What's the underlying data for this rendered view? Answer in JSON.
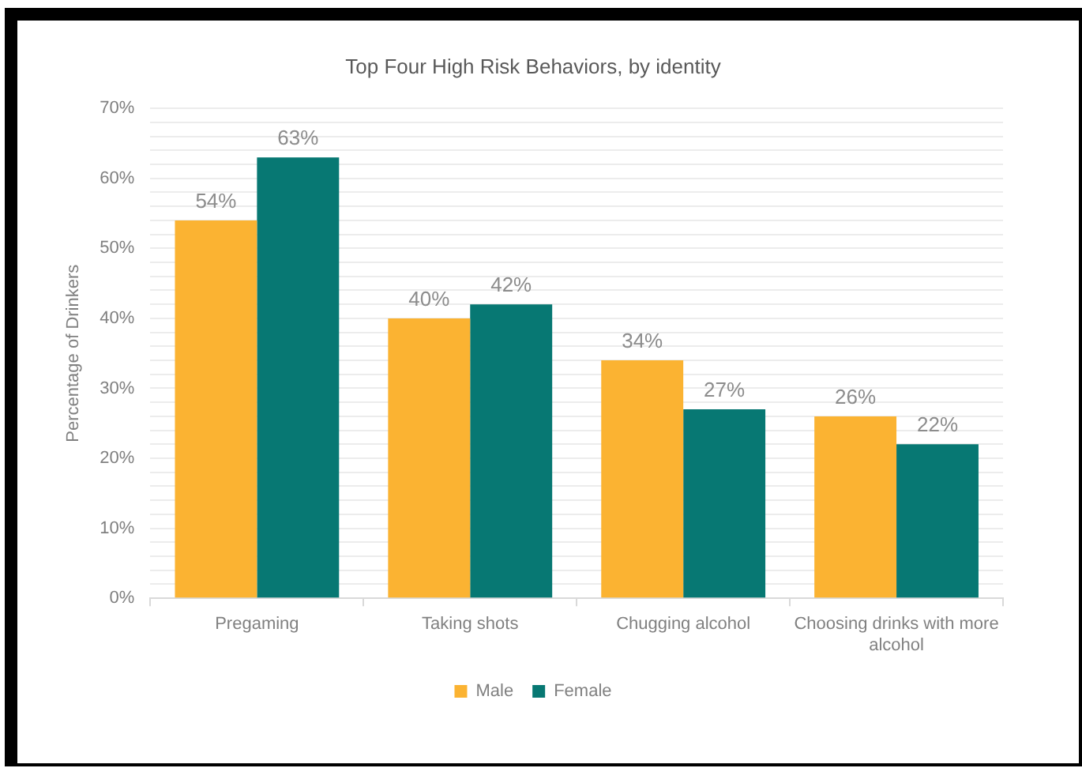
{
  "chart_data": {
    "type": "bar",
    "title": "Top Four High Risk Behaviors, by identity",
    "ylabel": "Percentage of Drinkers",
    "categories": [
      "Pregaming",
      "Taking shots",
      "Chugging alcohol",
      "Choosing drinks with more alcohol"
    ],
    "series": [
      {
        "name": "Male",
        "color": "#fbb332",
        "values": [
          54,
          40,
          34,
          26
        ],
        "value_labels": [
          "54%",
          "40%",
          "34%",
          "26%"
        ]
      },
      {
        "name": "Female",
        "color": "#077873",
        "values": [
          63,
          42,
          27,
          22
        ],
        "value_labels": [
          "63%",
          "42%",
          "27%",
          "22%"
        ]
      }
    ],
    "ylim": [
      0,
      70
    ],
    "yticks": [
      {
        "value": 0,
        "label": "0%"
      },
      {
        "value": 2,
        "label": null
      },
      {
        "value": 4,
        "label": null
      },
      {
        "value": 6,
        "label": null
      },
      {
        "value": 8,
        "label": null
      },
      {
        "value": 10,
        "label": "10%"
      },
      {
        "value": 12,
        "label": null
      },
      {
        "value": 14,
        "label": null
      },
      {
        "value": 16,
        "label": null
      },
      {
        "value": 18,
        "label": null
      },
      {
        "value": 20,
        "label": "20%"
      },
      {
        "value": 22,
        "label": null
      },
      {
        "value": 24,
        "label": null
      },
      {
        "value": 26,
        "label": null
      },
      {
        "value": 28,
        "label": null
      },
      {
        "value": 30,
        "label": "30%"
      },
      {
        "value": 32,
        "label": null
      },
      {
        "value": 34,
        "label": null
      },
      {
        "value": 36,
        "label": null
      },
      {
        "value": 38,
        "label": null
      },
      {
        "value": 40,
        "label": "40%"
      },
      {
        "value": 42,
        "label": null
      },
      {
        "value": 44,
        "label": null
      },
      {
        "value": 46,
        "label": null
      },
      {
        "value": 48,
        "label": null
      },
      {
        "value": 50,
        "label": "50%"
      },
      {
        "value": 52,
        "label": null
      },
      {
        "value": 54,
        "label": null
      },
      {
        "value": 56,
        "label": null
      },
      {
        "value": 58,
        "label": null
      },
      {
        "value": 60,
        "label": "60%"
      },
      {
        "value": 62,
        "label": null
      },
      {
        "value": 64,
        "label": null
      },
      {
        "value": 66,
        "label": null
      },
      {
        "value": 68,
        "label": null
      },
      {
        "value": 70,
        "label": "70%"
      }
    ],
    "grid": "y",
    "legend": "bottom"
  }
}
